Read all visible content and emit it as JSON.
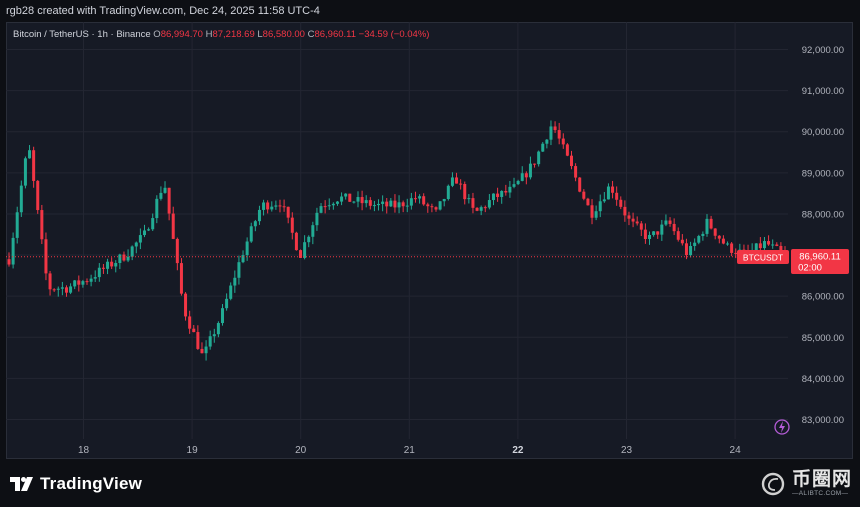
{
  "credit_line": "rgb28 created with TradingView.com, Dec 24, 2025 11:58 UTC-4",
  "legend": {
    "symbol": "Bitcoin / TetherUS · 1h · Binance",
    "open_key": "O",
    "open_val": "86,994.70",
    "high_key": "H",
    "high_val": "87,218.69",
    "low_key": "L",
    "low_val": "86,580.00",
    "close_key": "C",
    "close_val": "86,960.11",
    "change": "−34.59 (−0.04%)"
  },
  "price_tag": {
    "ticker": "BTCUSDT",
    "price": "86,960.11",
    "countdown": "02:00"
  },
  "brand": {
    "name": "TradingView"
  },
  "watermark": {
    "cn": "币圈网",
    "url": "—ALIBTC.COM—"
  },
  "colors": {
    "up": "#22ab94",
    "down": "#f23645",
    "bg": "#161a25",
    "grid": "#232632"
  },
  "chart_data": {
    "type": "candlestick",
    "title": "",
    "y_ticks": [
      "92,000.00",
      "91,000.00",
      "90,000.00",
      "89,000.00",
      "88,000.00",
      "87,000.00",
      "86,000.00",
      "85,000.00",
      "84,000.00",
      "83,000.00"
    ],
    "x_ticks": [
      "18",
      "19",
      "20",
      "21",
      "22",
      "23",
      "24"
    ],
    "ylim": [
      82400,
      92700
    ],
    "last_price": 86960.11,
    "series": [
      {
        "x": "17",
        "close": 86900
      },
      {
        "x": "17",
        "close": 89700
      },
      {
        "x": "17",
        "close": 86200
      },
      {
        "x": "17",
        "close": 86200
      },
      {
        "x": "17",
        "close": 86400
      },
      {
        "x": "17",
        "close": 86700
      },
      {
        "x": "17",
        "close": 87000
      },
      {
        "x": "17",
        "close": 87500
      },
      {
        "x": "18",
        "close": 88800
      },
      {
        "x": "18",
        "close": 85700
      },
      {
        "x": "18",
        "close": 84500
      },
      {
        "x": "18",
        "close": 85600
      },
      {
        "x": "19",
        "close": 87000
      },
      {
        "x": "19",
        "close": 88200
      },
      {
        "x": "19",
        "close": 88300
      },
      {
        "x": "19",
        "close": 87000
      },
      {
        "x": "19",
        "close": 88200
      },
      {
        "x": "20",
        "close": 88400
      },
      {
        "x": "20",
        "close": 88300
      },
      {
        "x": "20",
        "close": 88200
      },
      {
        "x": "20",
        "close": 88200
      },
      {
        "x": "20",
        "close": 88400
      },
      {
        "x": "21",
        "close": 88000
      },
      {
        "x": "21",
        "close": 88900
      },
      {
        "x": "21",
        "close": 88000
      },
      {
        "x": "21",
        "close": 88400
      },
      {
        "x": "21",
        "close": 88600
      },
      {
        "x": "22",
        "close": 89200
      },
      {
        "x": "22",
        "close": 90200
      },
      {
        "x": "22",
        "close": 89100
      },
      {
        "x": "22",
        "close": 88000
      },
      {
        "x": "23",
        "close": 88700
      },
      {
        "x": "23",
        "close": 87800
      },
      {
        "x": "23",
        "close": 87400
      },
      {
        "x": "23",
        "close": 87800
      },
      {
        "x": "23",
        "close": 87000
      },
      {
        "x": "23",
        "close": 87800
      },
      {
        "x": "24",
        "close": 87200
      },
      {
        "x": "24",
        "close": 87000
      },
      {
        "x": "24",
        "close": 87300
      },
      {
        "x": "24",
        "close": 86960
      }
    ]
  }
}
